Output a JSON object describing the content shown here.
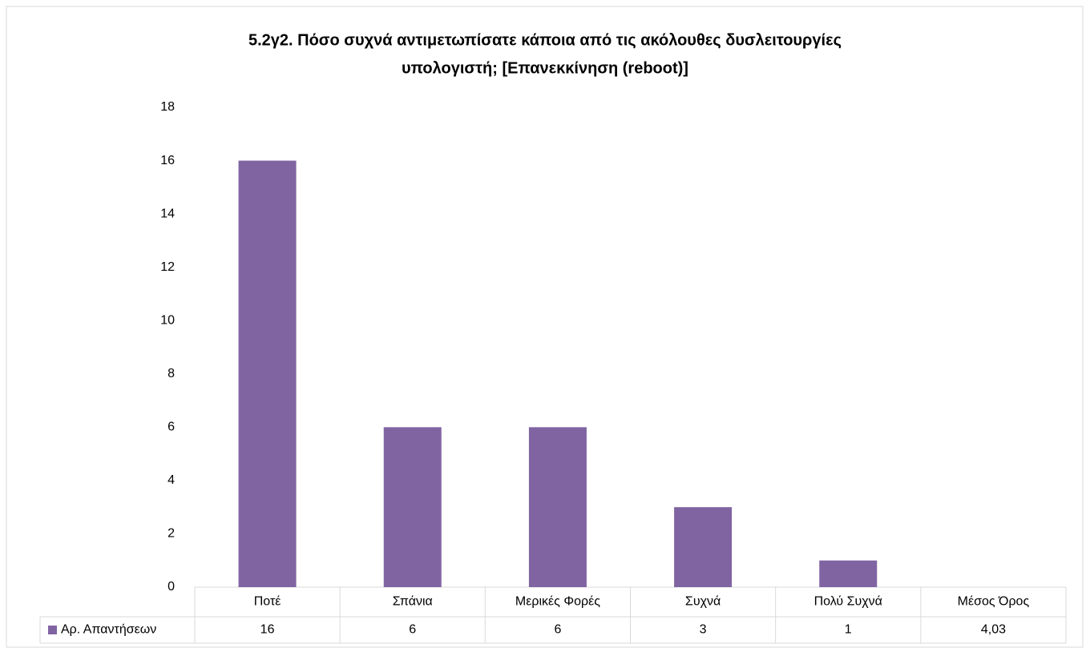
{
  "chart_data": {
    "type": "bar",
    "title": [
      "5.2γ2. Πόσο συχνά αντιμετωπίσατε κάποια από τις ακόλουθες δυσλειτουργίες",
      "υπολογιστή; [Επανεκκίνηση (reboot)]"
    ],
    "categories": [
      "Ποτέ",
      "Σπάνια",
      "Μερικές Φορές",
      "Συχνά",
      "Πολύ Συχνά"
    ],
    "series": [
      {
        "name": "Αρ. Απαντήσεων",
        "color": "#8064a2",
        "values": [
          16,
          6,
          6,
          3,
          1
        ]
      }
    ],
    "mean": {
      "label": "Μέσος Όρος",
      "value": 4.03,
      "value_label": "4,03"
    },
    "ylim": [
      0,
      18
    ],
    "yticks": [
      0,
      2,
      4,
      6,
      8,
      10,
      12,
      14,
      16,
      18
    ],
    "grid": false
  }
}
